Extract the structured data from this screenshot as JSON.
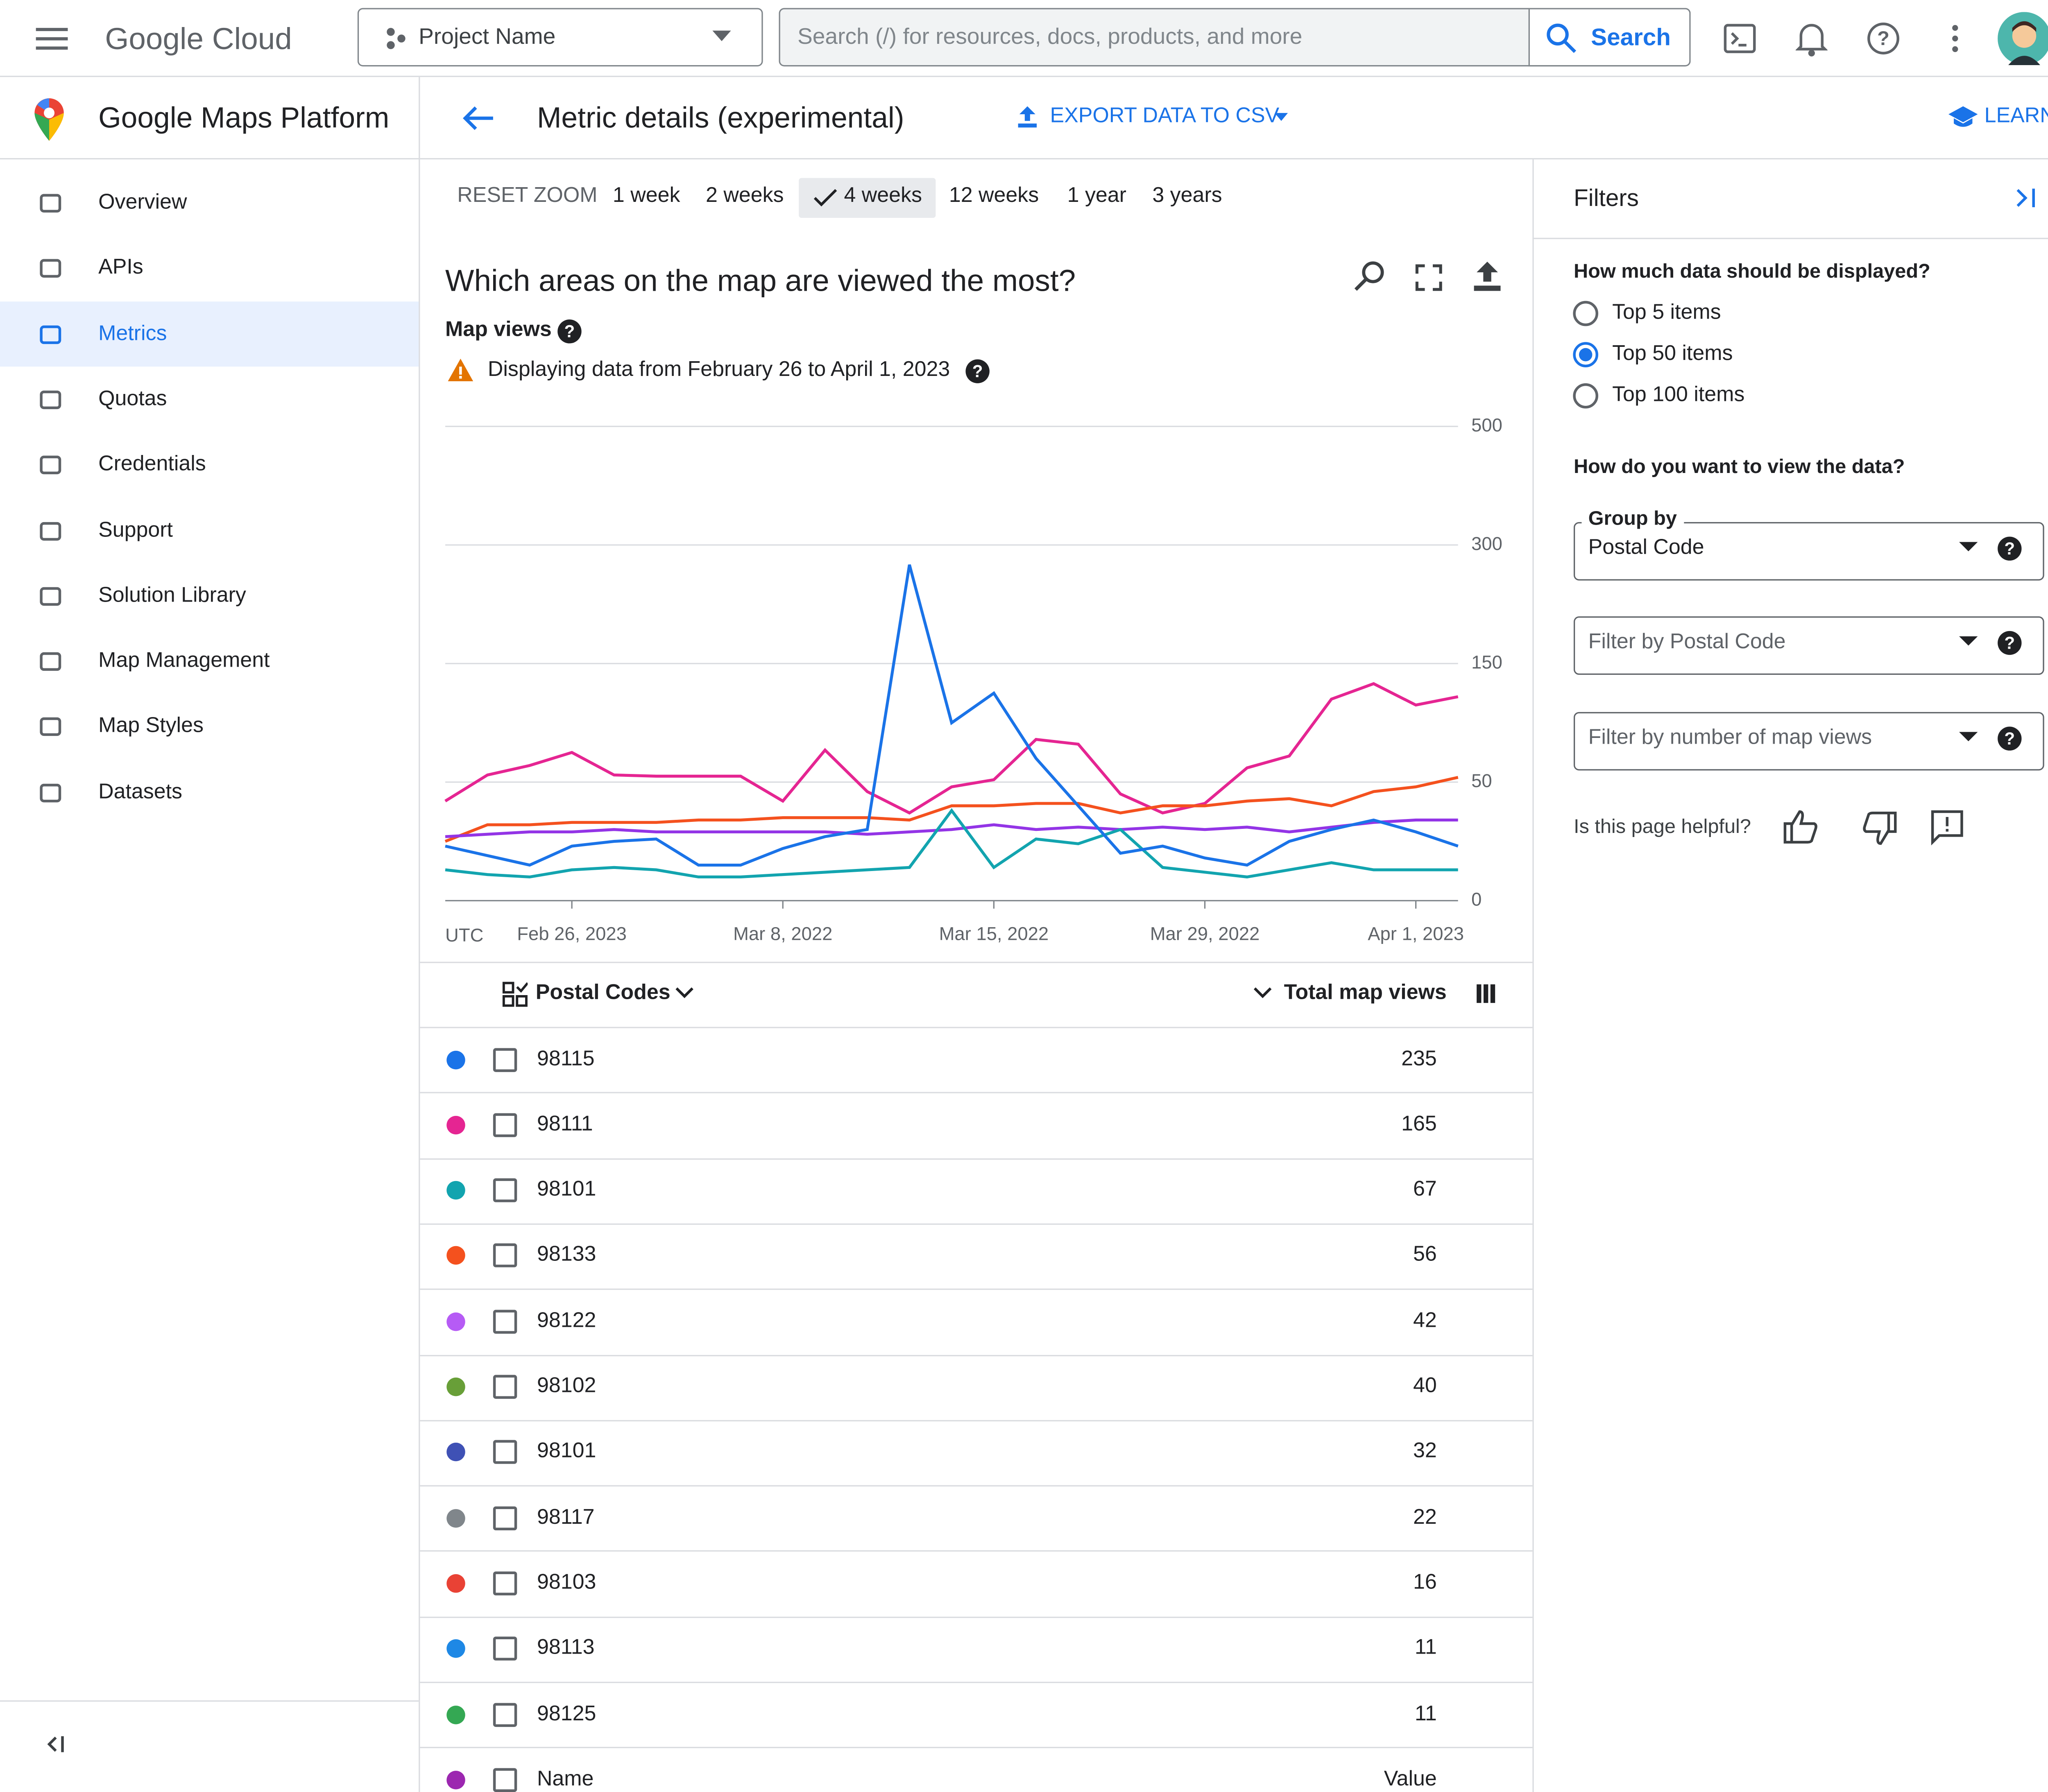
{
  "header": {
    "brand": "Google Cloud",
    "project": "Project Name",
    "search_placeholder": "Search (/) for resources, docs, products, and more",
    "search_button": "Search"
  },
  "sidebar": {
    "title": "Google Maps Platform",
    "items": [
      "Overview",
      "APIs",
      "Metrics",
      "Quotas",
      "Credentials",
      "Support",
      "Solution Library",
      "Map Management",
      "Map Styles",
      "Datasets"
    ],
    "active_index": 2
  },
  "page": {
    "title": "Metric details (experimental)",
    "export": "EXPORT DATA TO CSV",
    "learn": "LEARN"
  },
  "ranges": {
    "reset": "RESET ZOOM",
    "options": [
      "1 week",
      "2 weeks",
      "4 weeks",
      "12 weeks",
      "1 year",
      "3 years"
    ],
    "selected_index": 2
  },
  "chart_data": {
    "type": "line",
    "title": "Which areas on the map are viewed the most?",
    "subtitle": "Map views",
    "note": "Displaying data from February 26 to April 1, 2023",
    "x_label": "UTC",
    "categories": [
      null,
      null,
      null,
      "Feb 26, 2023",
      null,
      null,
      null,
      null,
      "Mar 8, 2022",
      null,
      null,
      null,
      null,
      "Mar 15, 2022",
      null,
      null,
      null,
      null,
      "Mar 29, 2022",
      null,
      null,
      null,
      null,
      "Apr 1, 2023",
      null
    ],
    "ylim": [
      0,
      500
    ],
    "yticks": [
      0,
      50,
      150,
      300,
      500
    ],
    "grid": true,
    "series": [
      {
        "name": "98111",
        "color": "#e52592",
        "values": [
          42,
          56,
          64,
          75,
          56,
          55,
          55,
          55,
          42,
          77,
          46,
          37,
          48,
          52,
          86,
          82,
          45,
          37,
          41,
          62,
          72,
          120,
          133,
          115,
          122
        ]
      },
      {
        "name": "98133",
        "color": "#f4511e",
        "values": [
          25,
          32,
          32,
          33,
          33,
          33,
          34,
          34,
          35,
          35,
          35,
          34,
          40,
          40,
          41,
          41,
          37,
          40,
          40,
          42,
          43,
          40,
          46,
          48,
          54
        ]
      },
      {
        "name": "98122",
        "color": "#9334e6",
        "values": [
          27,
          28,
          29,
          29,
          30,
          29,
          29,
          29,
          29,
          29,
          28,
          29,
          30,
          32,
          30,
          31,
          30,
          31,
          30,
          31,
          29,
          31,
          33,
          34,
          34
        ]
      },
      {
        "name": "98101",
        "color": "#12a4af",
        "values": [
          13,
          11,
          10,
          13,
          14,
          13,
          10,
          10,
          11,
          12,
          13,
          14,
          38,
          14,
          26,
          24,
          30,
          14,
          12,
          10,
          13,
          16,
          13,
          13,
          13
        ]
      },
      {
        "name": "98115",
        "color": "#1a73e8",
        "values": [
          23,
          19,
          15,
          23,
          25,
          26,
          15,
          15,
          22,
          27,
          30,
          275,
          100,
          125,
          70,
          40,
          20,
          23,
          18,
          15,
          25,
          30,
          34,
          29,
          23
        ]
      }
    ]
  },
  "table": {
    "group_header": "Postal Codes",
    "value_header": "Total map views",
    "rows": [
      {
        "code": "98115",
        "value": 235,
        "color": "#1a73e8"
      },
      {
        "code": "98111",
        "value": 165,
        "color": "#e52592"
      },
      {
        "code": "98101",
        "value": 67,
        "color": "#12a4af"
      },
      {
        "code": "98133",
        "value": 56,
        "color": "#f4511e"
      },
      {
        "code": "98122",
        "value": 42,
        "color": "#b65bf5"
      },
      {
        "code": "98102",
        "value": 40,
        "color": "#689f38"
      },
      {
        "code": "98101",
        "value": 32,
        "color": "#3f51b5"
      },
      {
        "code": "98117",
        "value": 22,
        "color": "#80868b"
      },
      {
        "code": "98103",
        "value": 16,
        "color": "#e94235"
      },
      {
        "code": "98113",
        "value": 11,
        "color": "#1e88e5"
      },
      {
        "code": "98125",
        "value": 11,
        "color": "#34a853"
      },
      {
        "code": "Name",
        "value": "Value",
        "color": "#9c27b0"
      }
    ]
  },
  "filters": {
    "title": "Filters",
    "amount_question": "How much data should be displayed?",
    "amount_options": [
      "Top 5 items",
      "Top 50 items",
      "Top 100 items"
    ],
    "amount_selected": 1,
    "view_question": "How do you want to view the data?",
    "group_label": "Group by",
    "group_value": "Postal Code",
    "postal_filter": "Filter by Postal Code",
    "views_filter": "Filter by number of map views",
    "helpful": "Is this page helpful?"
  }
}
